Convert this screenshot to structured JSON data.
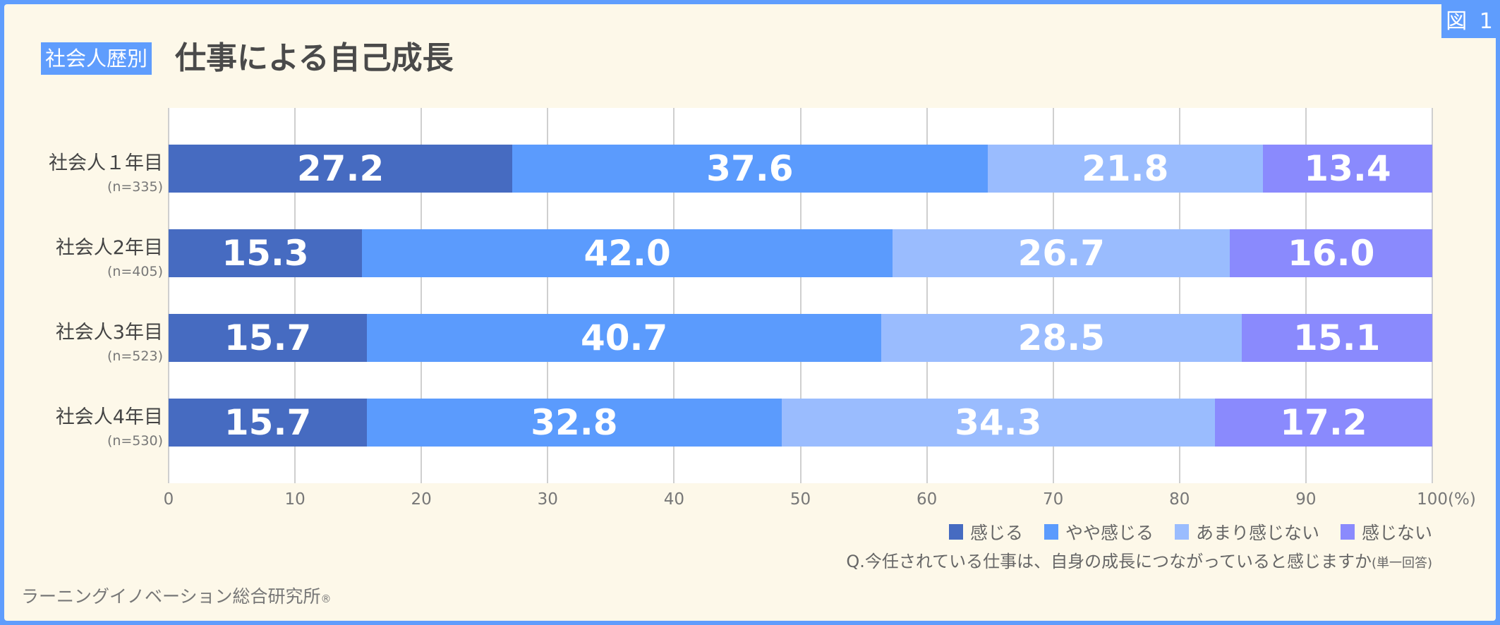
{
  "badge": "図 1",
  "tag": "社会人歴別",
  "title": "仕事による自己成長",
  "chart_data": {
    "type": "bar",
    "orientation": "horizontal-stacked-100",
    "categories": [
      {
        "label": "社会人１年目",
        "n": "(n=335)"
      },
      {
        "label": "社会人2年目",
        "n": "(n=405)"
      },
      {
        "label": "社会人3年目",
        "n": "(n=523)"
      },
      {
        "label": "社会人4年目",
        "n": "(n=530)"
      }
    ],
    "series": [
      {
        "name": "感じる",
        "color": "#466bc1",
        "values": [
          27.2,
          15.3,
          15.7,
          15.7
        ]
      },
      {
        "name": "やや感じる",
        "color": "#5b9bfd",
        "values": [
          37.6,
          42.0,
          40.7,
          32.8
        ]
      },
      {
        "name": "あまり感じない",
        "color": "#9abcfe",
        "values": [
          21.8,
          26.7,
          28.5,
          34.3
        ]
      },
      {
        "name": "感じない",
        "color": "#8a8afd",
        "values": [
          13.4,
          16.0,
          15.1,
          17.2
        ]
      }
    ],
    "xlim": [
      0,
      100
    ],
    "xticks": [
      "0",
      "10",
      "20",
      "30",
      "40",
      "50",
      "60",
      "70",
      "80",
      "90",
      "100(%)"
    ],
    "grid": true,
    "legend": "bottom-right"
  },
  "question": "Q.今任されている仕事は、自身の成長につながっていると感じますか",
  "question_note": "(単一回答)",
  "footer": "ラーニングイノベーション総合研究所",
  "footer_mark": "®"
}
